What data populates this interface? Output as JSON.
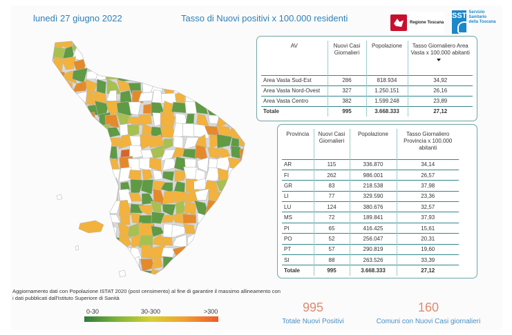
{
  "header": {
    "date": "lunedì 27 giugno 2022",
    "title": "Tasso di Nuovi positivi x 100.000 residenti"
  },
  "logos": {
    "regione": "Regione Toscana",
    "sst_mark": "SST",
    "sst_text": "Servizio Sanitario della Toscana"
  },
  "area_table": {
    "headers": [
      "AV",
      "Nuovi Casi Giornalieri",
      "Popolazione",
      "Tasso Giornaliero Area Vasta x 100.000 abitanti"
    ],
    "rows": [
      [
        "Area Vasta Sud-Est",
        "286",
        "818.934",
        "34,92"
      ],
      [
        "Area Vasta Nord-Ovest",
        "327",
        "1.250.151",
        "26,16"
      ],
      [
        "Area Vasta Centro",
        "382",
        "1.599.248",
        "23,89"
      ]
    ],
    "total": [
      "Totale",
      "995",
      "3.668.333",
      "27,12"
    ]
  },
  "province_table": {
    "headers": [
      "Provincia",
      "Nuovi Casi Giornalieri",
      "Popolazione",
      "Tasso Giornaliero Provincia x 100.000 abitanti"
    ],
    "rows": [
      [
        "AR",
        "115",
        "336.870",
        "34,14"
      ],
      [
        "FI",
        "262",
        "986.001",
        "26,57"
      ],
      [
        "GR",
        "83",
        "218.538",
        "37,98"
      ],
      [
        "LI",
        "77",
        "329.590",
        "23,36"
      ],
      [
        "LU",
        "124",
        "380.676",
        "32,57"
      ],
      [
        "MS",
        "72",
        "189.841",
        "37,93"
      ],
      [
        "PI",
        "65",
        "416.425",
        "15,61"
      ],
      [
        "PO",
        "52",
        "256.047",
        "20,31"
      ],
      [
        "PT",
        "57",
        "290.819",
        "19,60"
      ],
      [
        "SI",
        "88",
        "263.526",
        "33,39"
      ]
    ],
    "total": [
      "Totale",
      "995",
      "3.668.333",
      "27,12"
    ]
  },
  "footnote": "Aggiornamento dati con Popolazione ISTAT 2020 (post censimento) al fine di garantire il massimo allineamento con i dati pubblicati dall'Istituto Superiore di Sanità",
  "legend": {
    "labels": [
      "0-30",
      "30-300",
      ">300"
    ],
    "colors": [
      "#2f7a3a",
      "#7fb53a",
      "#d8d030",
      "#f0a030",
      "#f05a2a"
    ]
  },
  "kpis": [
    {
      "value": "995",
      "label": "Totale Nuovi Positivi"
    },
    {
      "value": "160",
      "label": "Comuni con Nuovi Casi giornalieri"
    }
  ],
  "map_colors": {
    "none": "#ffffff",
    "low": "#5f9a45",
    "mid_low": "#a8c050",
    "mid": "#f2b23c",
    "high": "#e58a2a",
    "top": "#d9642a",
    "border": "#b8b8b8"
  }
}
